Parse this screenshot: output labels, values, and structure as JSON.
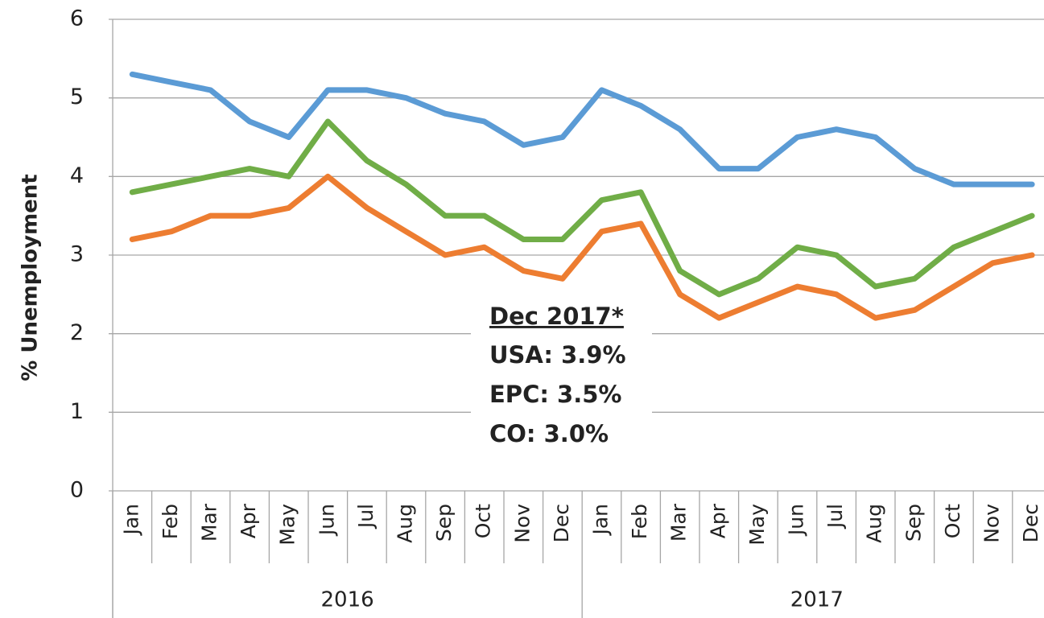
{
  "chart_data": {
    "type": "line",
    "y_label": "% Unemployment",
    "categories": [
      "Jan",
      "Feb",
      "Mar",
      "Apr",
      "May",
      "Jun",
      "Jul",
      "Aug",
      "Sep",
      "Oct",
      "Nov",
      "Dec",
      "Jan",
      "Feb",
      "Mar",
      "Apr",
      "May",
      "Jun",
      "Jul",
      "Aug",
      "Sep",
      "Oct",
      "Nov",
      "Dec"
    ],
    "category_groups": [
      "2016",
      "2017"
    ],
    "series": [
      {
        "name": "USA",
        "color": "#5b9bd5",
        "values": [
          5.3,
          5.2,
          5.1,
          4.7,
          4.5,
          5.1,
          5.1,
          5.0,
          4.8,
          4.7,
          4.4,
          4.5,
          5.1,
          4.9,
          4.6,
          4.1,
          4.1,
          4.5,
          4.6,
          4.5,
          4.1,
          3.9,
          3.9,
          3.9
        ]
      },
      {
        "name": "EPC",
        "color": "#70ad47",
        "values": [
          3.8,
          3.9,
          4.0,
          4.1,
          4.0,
          4.7,
          4.2,
          3.9,
          3.5,
          3.5,
          3.2,
          3.2,
          3.7,
          3.8,
          2.8,
          2.5,
          2.7,
          3.1,
          3.0,
          2.6,
          2.7,
          3.1,
          3.3,
          3.5
        ]
      },
      {
        "name": "CO",
        "color": "#ed7d31",
        "values": [
          3.2,
          3.3,
          3.5,
          3.5,
          3.6,
          4.0,
          3.6,
          3.3,
          3.0,
          3.1,
          2.8,
          2.7,
          3.3,
          3.4,
          2.5,
          2.2,
          2.4,
          2.6,
          2.5,
          2.2,
          2.3,
          2.6,
          2.9,
          3.0
        ]
      }
    ],
    "ylim": [
      0,
      6
    ],
    "yticks": [
      0,
      1,
      2,
      3,
      4,
      5,
      6
    ],
    "grid": true,
    "annotation": {
      "title": "Dec 2017*",
      "lines": [
        "USA: 3.9%",
        "EPC: 3.5%",
        "CO: 3.0%"
      ]
    }
  }
}
